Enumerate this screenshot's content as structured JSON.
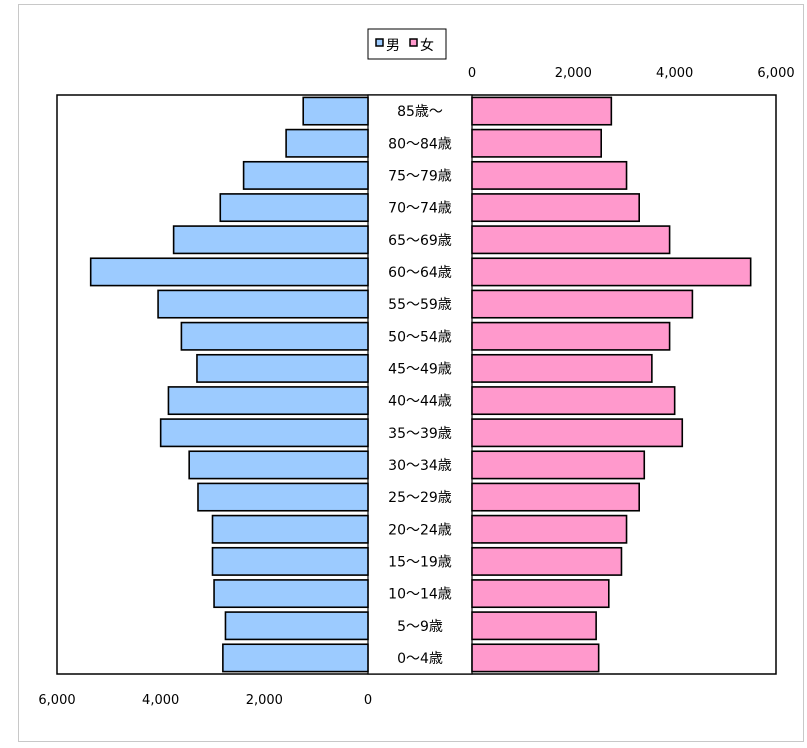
{
  "chart_data": {
    "type": "bar",
    "orientation": "horizontal-pyramid",
    "categories": [
      "0～4歳",
      "5～9歳",
      "10～14歳",
      "15～19歳",
      "20～24歳",
      "25～29歳",
      "30～34歳",
      "35～39歳",
      "40～44歳",
      "45～49歳",
      "50～54歳",
      "55～59歳",
      "60～64歳",
      "65～69歳",
      "70～74歳",
      "75～79歳",
      "80～84歳",
      "85歳～"
    ],
    "series": [
      {
        "name": "男",
        "side": "left",
        "values": [
          2800,
          2750,
          2970,
          3000,
          3000,
          3280,
          3450,
          4000,
          3850,
          3300,
          3600,
          4050,
          5350,
          3750,
          2850,
          2400,
          1580,
          1250
        ]
      },
      {
        "name": "女",
        "side": "right",
        "values": [
          2500,
          2450,
          2700,
          2950,
          3050,
          3300,
          3400,
          4150,
          4000,
          3550,
          3900,
          4350,
          5500,
          3900,
          3300,
          3050,
          2550,
          2750
        ]
      }
    ],
    "xlim": [
      0,
      6000
    ],
    "left_axis_ticks": [
      "6,000",
      "4,000",
      "2,000",
      "0"
    ],
    "right_axis_ticks": [
      "0",
      "2,000",
      "4,000",
      "6,000"
    ],
    "colors": {
      "男": "#9ccbff",
      "女": "#ff99cc"
    },
    "legend_placement": "top-center",
    "grid": false
  }
}
